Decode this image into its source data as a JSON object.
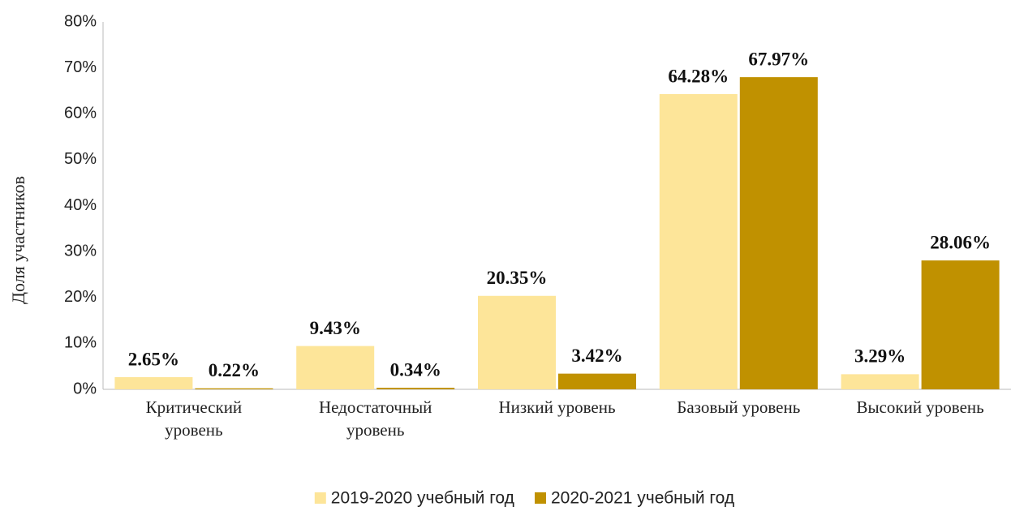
{
  "chart_data": {
    "type": "bar",
    "y_label": "Доля участников",
    "categories": [
      "Критический уровень",
      "Недостаточный уровень",
      "Низкий уровень",
      "Базовый уровень",
      "Высокий уровень"
    ],
    "series": [
      {
        "name": "2019-2020 учебный год",
        "color": "#fde599",
        "values": [
          2.65,
          9.43,
          20.35,
          64.28,
          3.29
        ],
        "value_labels": [
          "2.65%",
          "9.43%",
          "20.35%",
          "64.28%",
          "3.29%"
        ]
      },
      {
        "name": "2020-2021 учебный год",
        "color": "#c09100",
        "values": [
          0.22,
          0.34,
          3.42,
          67.97,
          28.06
        ],
        "value_labels": [
          "0.22%",
          "0.34%",
          "3.42%",
          "67.97%",
          "28.06%"
        ]
      }
    ],
    "ylim": [
      0,
      80
    ],
    "yticks": [
      {
        "value": 0,
        "label": "0%"
      },
      {
        "value": 10,
        "label": "10%"
      },
      {
        "value": 20,
        "label": "20%"
      },
      {
        "value": 30,
        "label": "30%"
      },
      {
        "value": 40,
        "label": "40%"
      },
      {
        "value": 50,
        "label": "50%"
      },
      {
        "value": 60,
        "label": "60%"
      },
      {
        "value": 70,
        "label": "70%"
      },
      {
        "value": 80,
        "label": "80%"
      }
    ],
    "grid": false,
    "legend": "bottom"
  }
}
